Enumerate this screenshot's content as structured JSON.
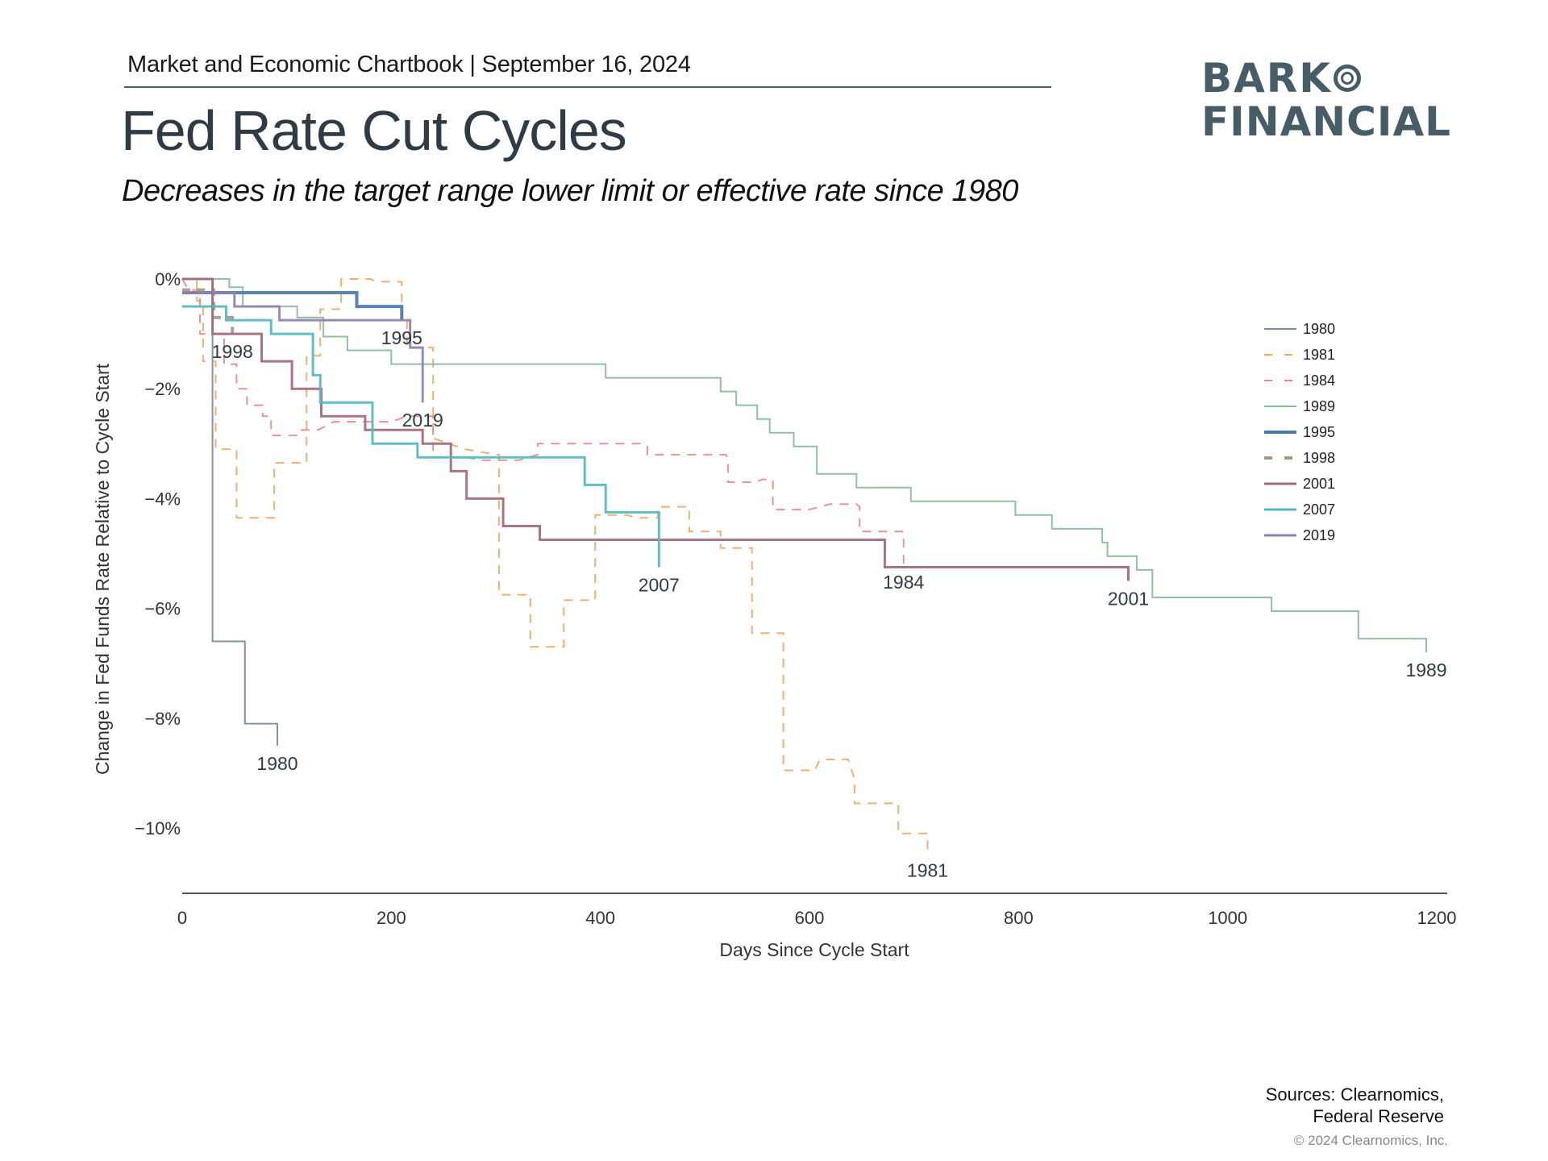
{
  "header": {
    "kicker": "Market and Economic Chartbook | September 16, 2024",
    "title": "Fed Rate Cut Cycles",
    "subtitle": "Decreases in the target range lower limit or effective rate since 1980"
  },
  "logo": {
    "line1": "BARK",
    "line2": "FINANCIAL"
  },
  "footer": {
    "sources_line1": "Sources: Clearnomics,",
    "sources_line2": "Federal Reserve",
    "copyright": "© 2024 Clearnomics, Inc."
  },
  "chart_data": {
    "type": "line",
    "step": true,
    "title": "Fed Rate Cut Cycles",
    "xlabel": "Days Since Cycle Start",
    "ylabel": "Change in Fed Funds Rate Relative to Cycle Start",
    "xlim": [
      0,
      1200
    ],
    "ylim": [
      -11.1,
      0.2
    ],
    "xticks": [
      0,
      200,
      400,
      600,
      800,
      1000,
      1200
    ],
    "xtick_labels": [
      "0",
      "200",
      "400",
      "600",
      "800",
      "1000",
      "1200"
    ],
    "yticks": [
      0,
      -2,
      -4,
      -6,
      -8,
      -10
    ],
    "ytick_labels": [
      "0%",
      "−2%",
      "−4%",
      "−6%",
      "−8%",
      "−10%"
    ],
    "grid": false,
    "legend_position": "right",
    "series": [
      {
        "name": "1980",
        "color": "#7a8a99",
        "dash": "solid",
        "width": 2,
        "points": [
          [
            0,
            0
          ],
          [
            29,
            0
          ],
          [
            29,
            -6.6
          ],
          [
            60,
            -6.6
          ],
          [
            60,
            -8.1
          ],
          [
            91,
            -8.1
          ],
          [
            91,
            -8.5
          ]
        ]
      },
      {
        "name": "1981",
        "color": "#f0a868",
        "dash": "dashed",
        "width": 2,
        "points": [
          [
            0,
            0
          ],
          [
            14,
            0
          ],
          [
            14,
            -0.4
          ],
          [
            20,
            -0.4
          ],
          [
            20,
            -1.5
          ],
          [
            32,
            -1.5
          ],
          [
            32,
            -3.1
          ],
          [
            52,
            -3.1
          ],
          [
            52,
            -4.35
          ],
          [
            88,
            -4.35
          ],
          [
            88,
            -3.35
          ],
          [
            119,
            -3.35
          ],
          [
            119,
            -1.4
          ],
          [
            132,
            -1.4
          ],
          [
            132,
            -0.55
          ],
          [
            150,
            -0.55
          ],
          [
            150,
            -0.5
          ],
          [
            152,
            -0.5
          ],
          [
            152,
            0
          ],
          [
            180,
            0
          ],
          [
            185,
            -0.05
          ],
          [
            210,
            -0.05
          ],
          [
            210,
            -0.75
          ],
          [
            215,
            -0.75
          ],
          [
            215,
            -1.25
          ],
          [
            240,
            -1.25
          ],
          [
            240,
            -2.9
          ],
          [
            270,
            -3.1
          ],
          [
            300,
            -3.2
          ],
          [
            303,
            -3.2
          ],
          [
            303,
            -5.75
          ],
          [
            333,
            -5.75
          ],
          [
            333,
            -6.7
          ],
          [
            365,
            -6.7
          ],
          [
            365,
            -5.85
          ],
          [
            395,
            -5.85
          ],
          [
            395,
            -4.3
          ],
          [
            425,
            -4.3
          ],
          [
            435,
            -4.35
          ],
          [
            455,
            -4.35
          ],
          [
            455,
            -4.15
          ],
          [
            485,
            -4.15
          ],
          [
            485,
            -4.6
          ],
          [
            515,
            -4.6
          ],
          [
            515,
            -4.9
          ],
          [
            545,
            -4.9
          ],
          [
            545,
            -6.45
          ],
          [
            575,
            -6.45
          ],
          [
            575,
            -8.95
          ],
          [
            605,
            -8.95
          ],
          [
            610,
            -8.75
          ],
          [
            637,
            -8.75
          ],
          [
            643,
            -9.1
          ],
          [
            643,
            -9.55
          ],
          [
            685,
            -9.55
          ],
          [
            685,
            -10.1
          ],
          [
            713,
            -10.1
          ],
          [
            713,
            -10.45
          ]
        ]
      },
      {
        "name": "1984",
        "color": "#e88a8a",
        "dash": "dashed",
        "width": 2,
        "points": [
          [
            0,
            0
          ],
          [
            6,
            -0.2
          ],
          [
            17,
            -0.2
          ],
          [
            17,
            -1.0
          ],
          [
            30,
            -1.0
          ],
          [
            40,
            -1.0
          ],
          [
            40,
            -1.55
          ],
          [
            52,
            -1.55
          ],
          [
            52,
            -2.0
          ],
          [
            62,
            -2.0
          ],
          [
            62,
            -2.3
          ],
          [
            77,
            -2.3
          ],
          [
            77,
            -2.5
          ],
          [
            85,
            -2.5
          ],
          [
            85,
            -2.85
          ],
          [
            112,
            -2.85
          ],
          [
            114,
            -2.75
          ],
          [
            130,
            -2.75
          ],
          [
            145,
            -2.6
          ],
          [
            200,
            -2.6
          ],
          [
            215,
            -2.5
          ],
          [
            240,
            -2.5
          ],
          [
            240,
            -3.25
          ],
          [
            272,
            -3.25
          ],
          [
            285,
            -3.3
          ],
          [
            322,
            -3.3
          ],
          [
            340,
            -3.2
          ],
          [
            340,
            -3.0
          ],
          [
            440,
            -3.0
          ],
          [
            445,
            -3.05
          ],
          [
            445,
            -3.2
          ],
          [
            520,
            -3.2
          ],
          [
            522,
            -3.3
          ],
          [
            522,
            -3.7
          ],
          [
            548,
            -3.7
          ],
          [
            555,
            -3.65
          ],
          [
            565,
            -3.65
          ],
          [
            565,
            -4.2
          ],
          [
            595,
            -4.2
          ],
          [
            600,
            -4.2
          ],
          [
            620,
            -4.1
          ],
          [
            645,
            -4.1
          ],
          [
            648,
            -4.15
          ],
          [
            648,
            -4.6
          ],
          [
            690,
            -4.6
          ],
          [
            690,
            -5.2
          ]
        ]
      },
      {
        "name": "1989",
        "color": "#88bb99",
        "dash": "solid",
        "width": 2,
        "points": [
          [
            0,
            0
          ],
          [
            45,
            0
          ],
          [
            45,
            -0.15
          ],
          [
            58,
            -0.15
          ],
          [
            58,
            -0.5
          ],
          [
            110,
            -0.5
          ],
          [
            110,
            -0.7
          ],
          [
            135,
            -0.7
          ],
          [
            135,
            -1.05
          ],
          [
            158,
            -1.05
          ],
          [
            158,
            -1.3
          ],
          [
            200,
            -1.3
          ],
          [
            200,
            -1.55
          ],
          [
            405,
            -1.55
          ],
          [
            405,
            -1.8
          ],
          [
            515,
            -1.8
          ],
          [
            515,
            -2.05
          ],
          [
            530,
            -2.05
          ],
          [
            530,
            -2.3
          ],
          [
            550,
            -2.3
          ],
          [
            550,
            -2.55
          ],
          [
            562,
            -2.55
          ],
          [
            562,
            -2.8
          ],
          [
            585,
            -2.8
          ],
          [
            585,
            -3.05
          ],
          [
            607,
            -3.05
          ],
          [
            607,
            -3.55
          ],
          [
            645,
            -3.55
          ],
          [
            645,
            -3.8
          ],
          [
            697,
            -3.8
          ],
          [
            697,
            -4.05
          ],
          [
            797,
            -4.05
          ],
          [
            797,
            -4.3
          ],
          [
            832,
            -4.3
          ],
          [
            832,
            -4.55
          ],
          [
            880,
            -4.55
          ],
          [
            880,
            -4.8
          ],
          [
            885,
            -4.8
          ],
          [
            885,
            -5.05
          ],
          [
            913,
            -5.05
          ],
          [
            913,
            -5.3
          ],
          [
            928,
            -5.3
          ],
          [
            928,
            -5.8
          ],
          [
            1042,
            -5.8
          ],
          [
            1042,
            -6.05
          ],
          [
            1125,
            -6.05
          ],
          [
            1125,
            -6.55
          ],
          [
            1190,
            -6.55
          ],
          [
            1190,
            -6.8
          ]
        ]
      },
      {
        "name": "1995",
        "color": "#4a7aa8",
        "dash": "solid",
        "width": 4,
        "points": [
          [
            0,
            -0.25
          ],
          [
            167,
            -0.25
          ],
          [
            167,
            -0.5
          ],
          [
            210,
            -0.5
          ],
          [
            210,
            -0.75
          ]
        ]
      },
      {
        "name": "1998",
        "color": "#a89880",
        "dash": "dashed",
        "width": 4,
        "points": [
          [
            0,
            -0.2
          ],
          [
            30,
            -0.2
          ],
          [
            30,
            -0.7
          ],
          [
            48,
            -0.7
          ],
          [
            48,
            -1.0
          ]
        ]
      },
      {
        "name": "2001",
        "color": "#a06880",
        "dash": "solid",
        "width": 3,
        "points": [
          [
            0,
            0
          ],
          [
            29,
            0
          ],
          [
            29,
            -1.0
          ],
          [
            76,
            -1.0
          ],
          [
            76,
            -1.5
          ],
          [
            105,
            -1.5
          ],
          [
            105,
            -2.0
          ],
          [
            133,
            -2.0
          ],
          [
            133,
            -2.5
          ],
          [
            175,
            -2.5
          ],
          [
            175,
            -2.75
          ],
          [
            230,
            -2.75
          ],
          [
            230,
            -3.0
          ],
          [
            257,
            -3.0
          ],
          [
            257,
            -3.5
          ],
          [
            272,
            -3.5
          ],
          [
            272,
            -4.0
          ],
          [
            307,
            -4.0
          ],
          [
            307,
            -4.5
          ],
          [
            342,
            -4.5
          ],
          [
            342,
            -4.75
          ],
          [
            672,
            -4.75
          ],
          [
            672,
            -5.25
          ],
          [
            905,
            -5.25
          ],
          [
            905,
            -5.5
          ]
        ]
      },
      {
        "name": "2007",
        "color": "#55b8c0",
        "dash": "solid",
        "width": 3,
        "points": [
          [
            0,
            -0.5
          ],
          [
            42,
            -0.5
          ],
          [
            42,
            -0.75
          ],
          [
            57,
            -0.75
          ],
          [
            57,
            -0.75
          ],
          [
            85,
            -0.75
          ],
          [
            85,
            -1.0
          ],
          [
            125,
            -1.0
          ],
          [
            125,
            -1.75
          ],
          [
            132,
            -1.75
          ],
          [
            132,
            -2.25
          ],
          [
            182,
            -2.25
          ],
          [
            182,
            -3.0
          ],
          [
            225,
            -3.0
          ],
          [
            225,
            -3.25
          ],
          [
            385,
            -3.25
          ],
          [
            385,
            -3.75
          ],
          [
            405,
            -3.75
          ],
          [
            405,
            -4.25
          ],
          [
            456,
            -4.25
          ],
          [
            456,
            -5.25
          ]
        ]
      },
      {
        "name": "2019",
        "color": "#9080b0",
        "dash": "solid",
        "width": 3,
        "points": [
          [
            0,
            -0.25
          ],
          [
            50,
            -0.25
          ],
          [
            50,
            -0.5
          ],
          [
            93,
            -0.5
          ],
          [
            93,
            -0.75
          ],
          [
            218,
            -0.75
          ],
          [
            218,
            -1.25
          ],
          [
            230,
            -1.25
          ],
          [
            230,
            -2.25
          ]
        ]
      }
    ],
    "end_labels": [
      {
        "name": "1980",
        "x": 91,
        "y": -8.5
      },
      {
        "name": "1981",
        "x": 713,
        "y": -10.45
      },
      {
        "name": "1984",
        "x": 690,
        "y": -5.2
      },
      {
        "name": "1989",
        "x": 1190,
        "y": -6.8
      },
      {
        "name": "1995",
        "x": 210,
        "y": -0.75
      },
      {
        "name": "1998",
        "x": 48,
        "y": -1.0
      },
      {
        "name": "2001",
        "x": 905,
        "y": -5.5
      },
      {
        "name": "2007",
        "x": 456,
        "y": -5.25
      },
      {
        "name": "2019",
        "x": 230,
        "y": -2.25
      }
    ]
  }
}
